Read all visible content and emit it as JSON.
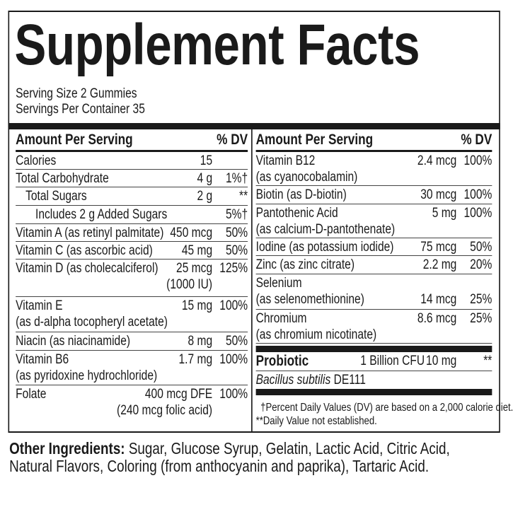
{
  "title": "Supplement Facts",
  "serving_size": "Serving Size 2 Gummies",
  "servings_per_container": "Servings Per Container 35",
  "header": {
    "amount": "Amount Per Serving",
    "dv": "% DV"
  },
  "left_rows": [
    {
      "name": "Calories",
      "amount": "15",
      "dv": ""
    },
    {
      "name": "Total Carbohydrate",
      "amount": "4 g",
      "dv": "1%†"
    },
    {
      "name": "Total Sugars",
      "amount": "2 g",
      "dv": "**",
      "indent": 1
    },
    {
      "name": "Includes 2 g Added Sugars",
      "amount": "",
      "dv": "5%†",
      "indent": 2
    },
    {
      "name": "Vitamin A (as retinyl palmitate)",
      "amount": "450 mcg",
      "dv": "50%"
    },
    {
      "name": "Vitamin C (as ascorbic acid)",
      "amount": "45 mg",
      "dv": "50%"
    },
    {
      "name": "Vitamin D (as cholecalciferol)",
      "amount": "25 mcg",
      "amount2": "(1000 IU)",
      "dv": "125%"
    },
    {
      "name": "Vitamin E",
      "sub": "(as d-alpha tocopheryl acetate)",
      "amount": "15 mg",
      "dv": "100%"
    },
    {
      "name": "Niacin (as niacinamide)",
      "amount": "8 mg",
      "dv": "50%"
    },
    {
      "name": "Vitamin B6",
      "sub": "(as pyridoxine hydrochloride)",
      "amount": "1.7 mg",
      "dv": "100%"
    },
    {
      "name": "Folate",
      "amount": "400 mcg DFE",
      "amount2": "(240 mcg folic acid)",
      "dv": "100%"
    }
  ],
  "right_rows": [
    {
      "name": "Vitamin B12",
      "sub": "(as cyanocobalamin)",
      "amount": "2.4 mcg",
      "dv": "100%"
    },
    {
      "name": "Biotin (as D-biotin)",
      "amount": "30 mcg",
      "dv": "100%"
    },
    {
      "name": "Pantothenic Acid",
      "sub": "(as calcium-D-pantothenate)",
      "amount": "5 mg",
      "dv": "100%"
    },
    {
      "name": "Iodine (as potassium iodide)",
      "amount": "75 mcg",
      "dv": "50%"
    },
    {
      "name": "Zinc (as zinc citrate)",
      "amount": "2.2 mg",
      "dv": "20%"
    },
    {
      "name": "Selenium",
      "sub": "(as selenomethionine)",
      "amount": "14 mcg",
      "dv": "25%",
      "amount_on_sub": true
    },
    {
      "name": "Chromium",
      "sub": "(as chromium nicotinate)",
      "amount": "8.6 mcg",
      "dv": "25%"
    }
  ],
  "probiotic": {
    "label": "Probiotic",
    "count": "1 Billion CFU",
    "amount": "10 mg",
    "dv": "**",
    "strain_italic": "Bacillus subtilis",
    "strain_id": "DE111"
  },
  "footnotes": [
    "†Percent Daily Values (DV) are based on a 2,000 calorie diet.",
    "**Daily Value not established."
  ],
  "other_ingredients": {
    "label": "Other Ingredients:",
    "text_line1": "Sugar, Glucose Syrup, Gelatin, Lactic Acid, Citric Acid,",
    "text_line2": "Natural Flavors, Coloring (from anthocyanin and paprika), Tartaric Acid."
  }
}
